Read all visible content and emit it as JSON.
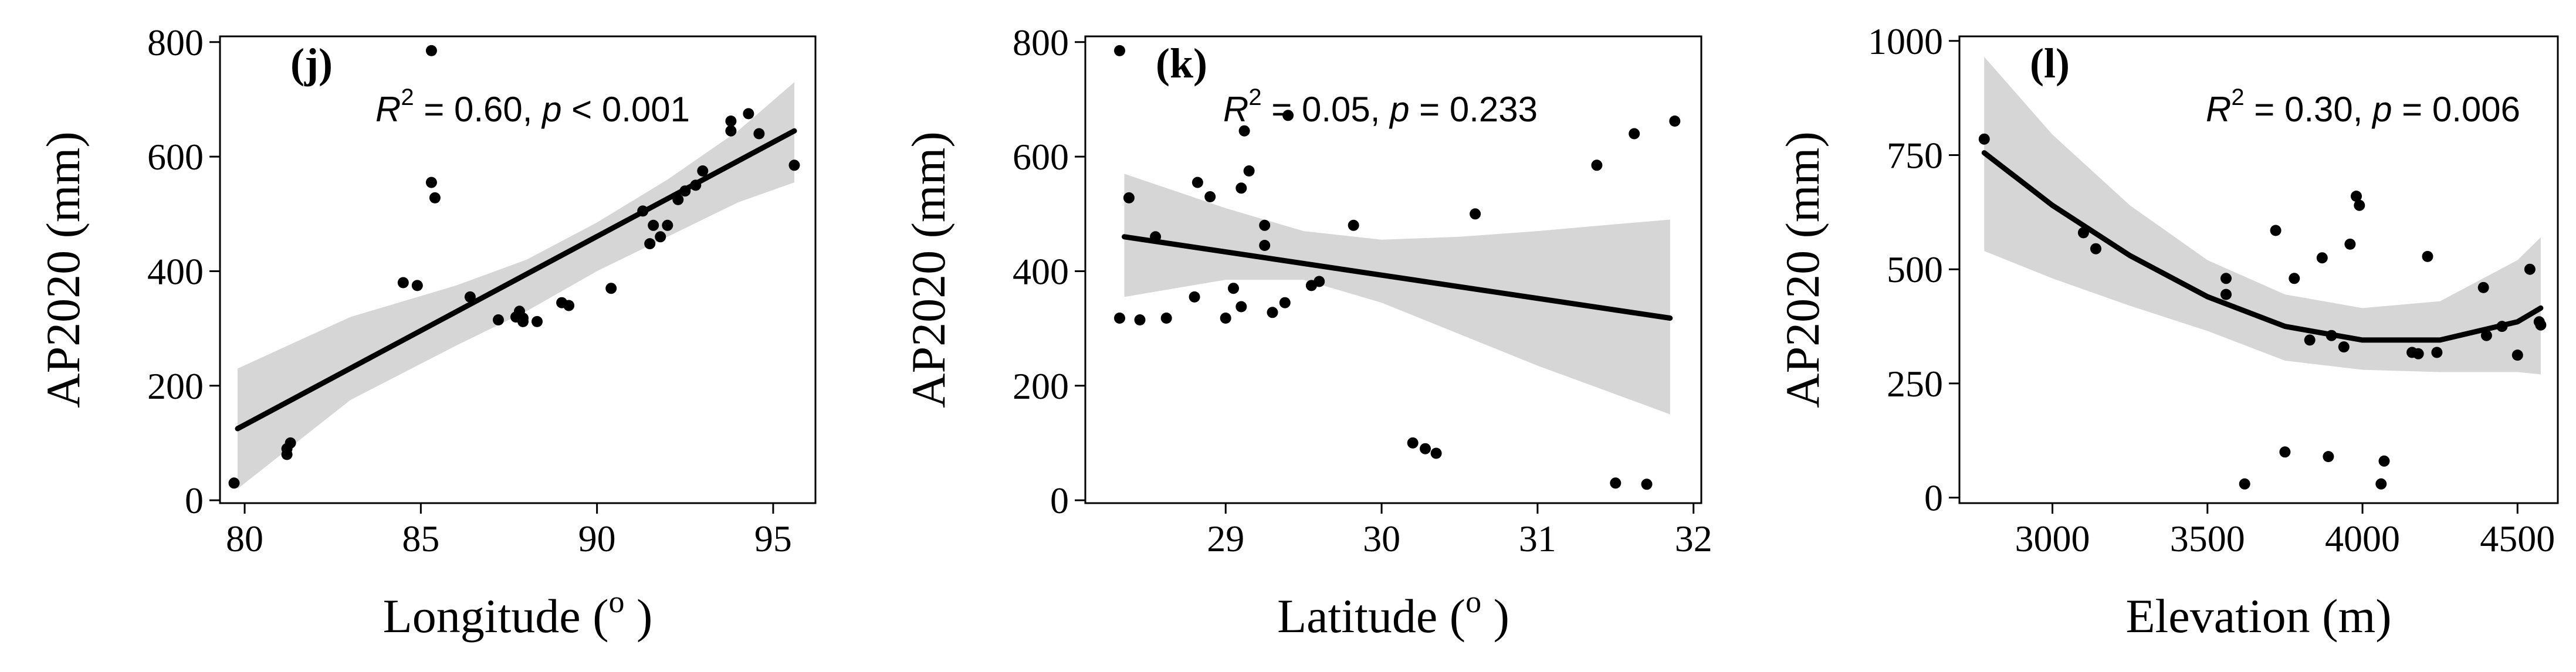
{
  "chart_data": [
    {
      "type": "scatter",
      "panel_label": "(j)",
      "annotation": {
        "r2_label": "R",
        "r2_sup": "2",
        "r2_value": " = 0.60, ",
        "p_label": "p",
        "p_value": " < 0.001"
      },
      "xlabel": "Longitude (",
      "xlabel_sup": "o",
      "xlabel_end": " )",
      "ylabel": "AP2020 (mm)",
      "xlim": [
        79.3,
        96.2
      ],
      "ylim": [
        -5,
        810
      ],
      "xticks": [
        80,
        85,
        90,
        95
      ],
      "yticks": [
        0,
        200,
        400,
        600,
        800
      ],
      "points": [
        [
          79.7,
          30
        ],
        [
          81.2,
          80
        ],
        [
          81.2,
          90
        ],
        [
          81.3,
          100
        ],
        [
          84.5,
          380
        ],
        [
          84.9,
          375
        ],
        [
          85.3,
          785
        ],
        [
          85.3,
          555
        ],
        [
          85.4,
          528
        ],
        [
          86.4,
          355
        ],
        [
          87.2,
          315
        ],
        [
          87.7,
          320
        ],
        [
          87.8,
          330
        ],
        [
          87.9,
          318
        ],
        [
          87.9,
          312
        ],
        [
          88.3,
          312
        ],
        [
          89.0,
          345
        ],
        [
          89.2,
          340
        ],
        [
          90.4,
          370
        ],
        [
          91.3,
          505
        ],
        [
          91.5,
          448
        ],
        [
          91.6,
          480
        ],
        [
          91.8,
          460
        ],
        [
          92.0,
          480
        ],
        [
          92.3,
          525
        ],
        [
          92.5,
          540
        ],
        [
          92.8,
          550
        ],
        [
          93.0,
          575
        ],
        [
          93.8,
          662
        ],
        [
          93.8,
          645
        ],
        [
          94.3,
          675
        ],
        [
          94.6,
          640
        ],
        [
          95.6,
          585
        ]
      ],
      "fit": {
        "type": "linear",
        "x": [
          79.8,
          95.6
        ],
        "y": [
          125,
          645
        ]
      },
      "band": {
        "x": [
          79.8,
          83,
          86,
          88,
          90,
          92,
          94,
          95.6
        ],
        "lower": [
          20,
          175,
          270,
          330,
          400,
          460,
          520,
          555
        ],
        "upper": [
          230,
          320,
          375,
          420,
          485,
          560,
          645,
          730
        ]
      }
    },
    {
      "type": "scatter",
      "panel_label": "(k)",
      "annotation": {
        "r2_label": "R",
        "r2_sup": "2",
        "r2_value": " = 0.05, ",
        "p_label": "p",
        "p_value": " = 0.233"
      },
      "xlabel": "Latitude (",
      "xlabel_sup": "o",
      "xlabel_end": " )",
      "ylabel": "AP2020 (mm)",
      "xlim": [
        28.1,
        32.05
      ],
      "ylim": [
        -5,
        810
      ],
      "xticks": [
        29,
        30,
        31,
        32
      ],
      "yticks": [
        0,
        200,
        400,
        600,
        800
      ],
      "points": [
        [
          28.32,
          785
        ],
        [
          28.32,
          318
        ],
        [
          28.38,
          528
        ],
        [
          28.45,
          315
        ],
        [
          28.55,
          460
        ],
        [
          28.62,
          318
        ],
        [
          28.8,
          355
        ],
        [
          28.82,
          555
        ],
        [
          28.9,
          530
        ],
        [
          29.0,
          318
        ],
        [
          29.05,
          370
        ],
        [
          29.1,
          338
        ],
        [
          29.1,
          545
        ],
        [
          29.12,
          645
        ],
        [
          29.15,
          575
        ],
        [
          29.25,
          480
        ],
        [
          29.25,
          445
        ],
        [
          29.3,
          328
        ],
        [
          29.38,
          345
        ],
        [
          29.4,
          672
        ],
        [
          29.55,
          375
        ],
        [
          29.6,
          382
        ],
        [
          29.82,
          480
        ],
        [
          30.2,
          100
        ],
        [
          30.28,
          90
        ],
        [
          30.35,
          82
        ],
        [
          30.6,
          500
        ],
        [
          31.38,
          585
        ],
        [
          31.5,
          30
        ],
        [
          31.62,
          640
        ],
        [
          31.7,
          28
        ],
        [
          31.88,
          662
        ]
      ],
      "fit": {
        "type": "linear",
        "x": [
          28.35,
          31.85
        ],
        "y": [
          460,
          318
        ]
      },
      "band": {
        "x": [
          28.35,
          29,
          29.5,
          30,
          30.5,
          31,
          31.5,
          31.85
        ],
        "lower": [
          355,
          385,
          385,
          345,
          290,
          235,
          185,
          150
        ],
        "upper": [
          570,
          510,
          470,
          455,
          460,
          470,
          482,
          490
        ]
      }
    },
    {
      "type": "scatter",
      "panel_label": "(l)",
      "annotation": {
        "r2_label": "R",
        "r2_sup": "2",
        "r2_value": " = 0.30, ",
        "p_label": "p",
        "p_value": " = 0.006"
      },
      "xlabel": "Elevation (m)",
      "xlabel_sup": "",
      "xlabel_end": "",
      "ylabel": "AP2020 (mm)",
      "xlim": [
        2700,
        4630
      ],
      "ylim": [
        -12,
        1010
      ],
      "xticks": [
        3000,
        3500,
        4000,
        4500
      ],
      "yticks": [
        0,
        250,
        500,
        750,
        1000
      ],
      "points": [
        [
          2780,
          785
        ],
        [
          3100,
          580
        ],
        [
          3140,
          545
        ],
        [
          3560,
          480
        ],
        [
          3560,
          445
        ],
        [
          3620,
          30
        ],
        [
          3720,
          585
        ],
        [
          3750,
          100
        ],
        [
          3780,
          480
        ],
        [
          3830,
          345
        ],
        [
          3870,
          525
        ],
        [
          3890,
          90
        ],
        [
          3900,
          355
        ],
        [
          3940,
          330
        ],
        [
          3960,
          555
        ],
        [
          3980,
          660
        ],
        [
          3990,
          640
        ],
        [
          4060,
          30
        ],
        [
          4070,
          80
        ],
        [
          4160,
          318
        ],
        [
          4180,
          315
        ],
        [
          4210,
          528
        ],
        [
          4240,
          318
        ],
        [
          4390,
          460
        ],
        [
          4400,
          355
        ],
        [
          4450,
          375
        ],
        [
          4500,
          312
        ],
        [
          4540,
          500
        ],
        [
          4570,
          385
        ],
        [
          4575,
          378
        ]
      ],
      "fit": {
        "type": "quadratic",
        "x": [
          2780,
          3000,
          3250,
          3500,
          3750,
          4000,
          4250,
          4500,
          4575
        ],
        "y": [
          755,
          640,
          530,
          440,
          375,
          345,
          345,
          385,
          415
        ]
      },
      "band": {
        "x": [
          2780,
          3000,
          3250,
          3500,
          3750,
          4000,
          4250,
          4500,
          4575
        ],
        "lower": [
          540,
          480,
          420,
          365,
          300,
          280,
          275,
          275,
          270
        ],
        "upper": [
          965,
          795,
          640,
          520,
          445,
          415,
          430,
          520,
          570
        ]
      }
    }
  ]
}
